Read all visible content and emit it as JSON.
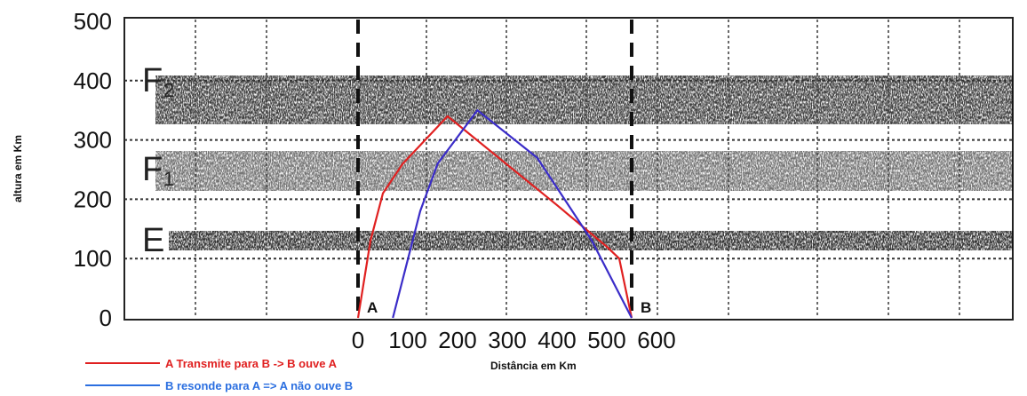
{
  "chart_data": {
    "type": "line",
    "ylabel": "altura em Km",
    "xlabel": "Distância em Km",
    "y_ticks": [
      0,
      100,
      200,
      300,
      400,
      500
    ],
    "x_ticks": [
      0,
      100,
      200,
      300,
      400,
      500,
      600
    ],
    "xlim": [
      0,
      600
    ],
    "ylim": [
      0,
      500
    ],
    "grid": true,
    "layers": [
      {
        "label": "F",
        "sub": "2",
        "y": 400
      },
      {
        "label": "F",
        "sub": "1",
        "y": 250
      },
      {
        "label": "E",
        "sub": "",
        "y": 130
      }
    ],
    "points": [
      {
        "label": "A",
        "x": 0
      },
      {
        "label": "B",
        "x": 550
      }
    ],
    "series": [
      {
        "name": "A Transmite para B -> B ouve A",
        "color": "#e02020",
        "x": [
          0,
          25,
          50,
          90,
          180,
          400,
          500,
          525,
          550
        ],
        "y": [
          0,
          130,
          210,
          260,
          340,
          190,
          120,
          100,
          0
        ]
      },
      {
        "name": "B resonde para A => A não ouve B",
        "color": "#3a2cc8",
        "x": [
          70,
          125,
          160,
          240,
          360,
          470,
          550
        ],
        "y": [
          0,
          180,
          260,
          350,
          270,
          130,
          0
        ]
      }
    ],
    "legend_position": "bottom-left",
    "legend_line_color": "#2b6fe0"
  }
}
